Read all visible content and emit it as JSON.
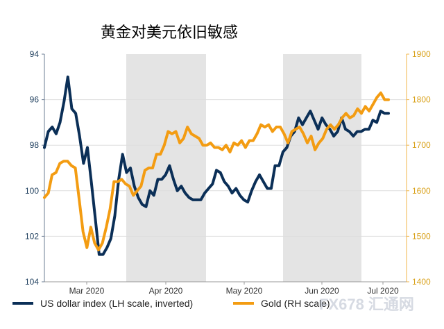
{
  "chart_data": {
    "type": "line",
    "title": "黄金对美元依旧敏感",
    "x_tick_labels": [
      "Mar 2020",
      "Apr 2020",
      "May 2020",
      "Jun 2020",
      "Jul 2020"
    ],
    "left_axis": {
      "ticks": [
        "94",
        "96",
        "98",
        "100",
        "102",
        "104"
      ],
      "range": [
        94,
        104
      ],
      "inverted": true
    },
    "right_axis": {
      "ticks": [
        "1900",
        "1800",
        "1700",
        "1600",
        "1500",
        "1400"
      ],
      "range": [
        1400,
        1900
      ]
    },
    "shaded_months": [
      "Apr 2020",
      "Jun 2020"
    ],
    "series": [
      {
        "name": "US dollar index (LH scale, inverted)",
        "axis": "left",
        "color": "#0b2f57",
        "values": [
          98.1,
          97.4,
          97.2,
          97.5,
          97.0,
          96.1,
          95.0,
          96.4,
          96.6,
          97.6,
          98.8,
          98.1,
          99.6,
          101.2,
          102.8,
          102.8,
          102.5,
          102.1,
          101.1,
          99.5,
          98.4,
          99.2,
          99.0,
          99.8,
          100.3,
          100.6,
          100.7,
          100.0,
          100.2,
          99.5,
          99.5,
          99.3,
          98.9,
          99.5,
          100.0,
          99.8,
          100.1,
          100.3,
          100.4,
          100.4,
          100.4,
          100.1,
          99.9,
          99.7,
          99.1,
          99.2,
          99.6,
          99.8,
          100.1,
          99.9,
          100.2,
          100.4,
          100.5,
          100.0,
          99.6,
          99.3,
          99.6,
          99.9,
          99.9,
          98.9,
          98.9,
          98.3,
          98.1,
          97.6,
          97.4,
          96.8,
          97.1,
          96.8,
          96.5,
          96.9,
          97.3,
          96.8,
          97.1,
          97.3,
          97.6,
          97.4,
          96.8,
          97.3,
          97.4,
          97.6,
          97.4,
          97.4,
          97.3,
          97.3,
          96.9,
          97.0,
          96.5,
          96.6,
          96.6
        ]
      },
      {
        "name": "Gold (RH scale)",
        "axis": "right",
        "color": "#f39c12",
        "values": [
          1585,
          1595,
          1635,
          1640,
          1660,
          1665,
          1665,
          1655,
          1650,
          1580,
          1510,
          1475,
          1520,
          1485,
          1470,
          1485,
          1520,
          1560,
          1620,
          1620,
          1625,
          1615,
          1610,
          1590,
          1600,
          1610,
          1645,
          1650,
          1650,
          1680,
          1680,
          1700,
          1730,
          1725,
          1730,
          1705,
          1715,
          1740,
          1725,
          1720,
          1715,
          1700,
          1700,
          1705,
          1695,
          1695,
          1690,
          1700,
          1685,
          1705,
          1700,
          1710,
          1695,
          1710,
          1710,
          1725,
          1745,
          1740,
          1745,
          1730,
          1740,
          1740,
          1725,
          1705,
          1730,
          1735,
          1740,
          1725,
          1705,
          1720,
          1690,
          1705,
          1715,
          1735,
          1745,
          1735,
          1745,
          1760,
          1770,
          1760,
          1765,
          1780,
          1770,
          1785,
          1775,
          1790,
          1805,
          1815,
          1800,
          1800
        ]
      }
    ]
  },
  "legend": {
    "dollar_label": "US dollar index (LH scale, inverted)",
    "gold_label": "Gold (RH scale)"
  },
  "watermark": "FX678 汇通网"
}
